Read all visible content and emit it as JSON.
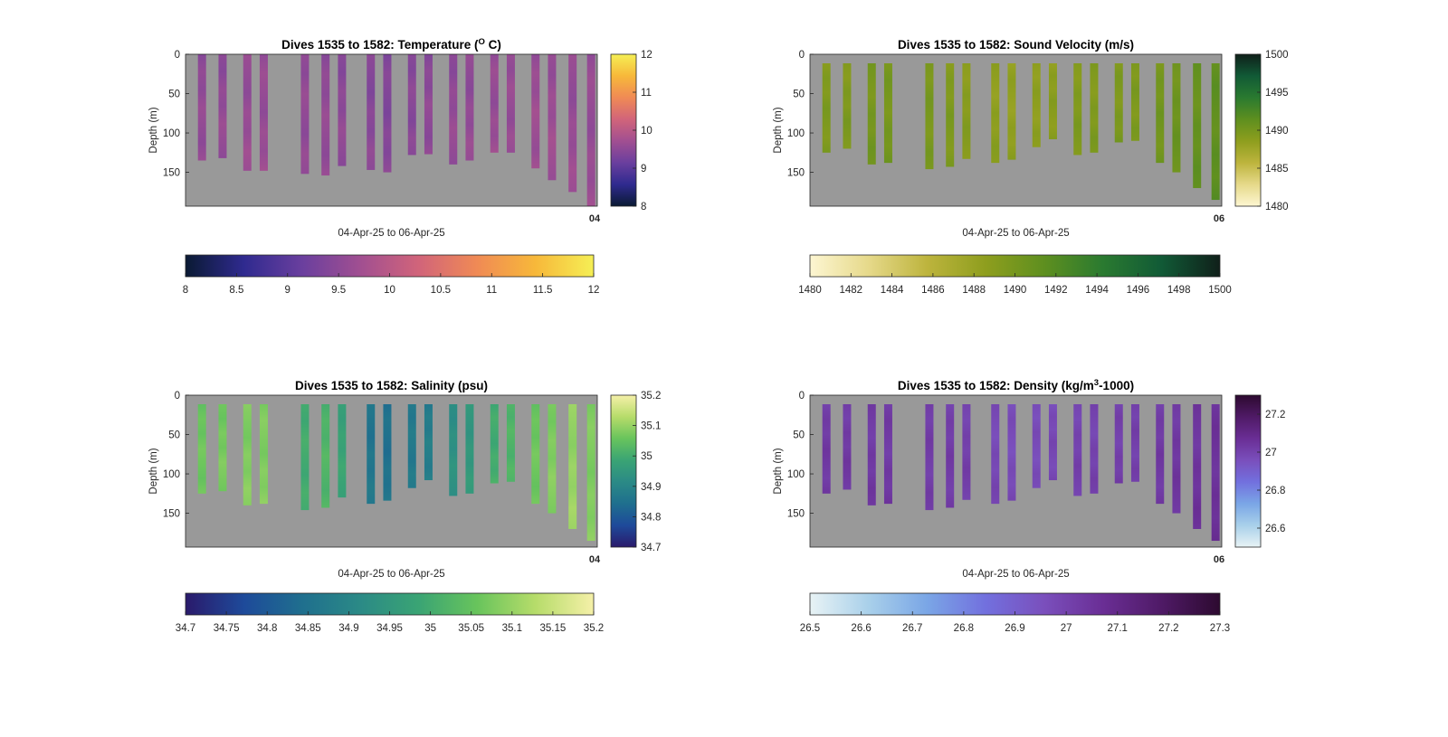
{
  "chart_data": [
    {
      "type": "heatmap",
      "title_prefix": "Dives 1535 to 1582: Temperature (",
      "title_sup": "O",
      "title_suffix": " C)",
      "xlabel": "04-Apr-25 to 06-Apr-25",
      "ylabel": "Depth (m)",
      "ylim": [
        0,
        193
      ],
      "yticks": [
        "0",
        "50",
        "100",
        "150"
      ],
      "xtick_label": "04",
      "colormap": [
        "#0a1a33",
        "#2f2a8f",
        "#6a3f9e",
        "#a14f91",
        "#d1647a",
        "#f08a55",
        "#f7b83a",
        "#f5ef55"
      ],
      "clim": [
        8,
        12
      ],
      "side_colorbar_ticks": [
        "8",
        "9",
        "10",
        "11",
        "12"
      ],
      "bottom_colorbar_ticks": [
        "8",
        "8.5",
        "9",
        "9.5",
        "10",
        "10.5",
        "11",
        "11.5",
        "12"
      ],
      "casts": [
        {
          "x": 0.04,
          "bottom": 135,
          "value": 9.55
        },
        {
          "x": 0.09,
          "bottom": 132,
          "value": 9.55
        },
        {
          "x": 0.15,
          "bottom": 148,
          "value": 9.6
        },
        {
          "x": 0.19,
          "bottom": 148,
          "value": 9.6
        },
        {
          "x": 0.29,
          "bottom": 152,
          "value": 9.55
        },
        {
          "x": 0.34,
          "bottom": 154,
          "value": 9.55
        },
        {
          "x": 0.38,
          "bottom": 142,
          "value": 9.5
        },
        {
          "x": 0.45,
          "bottom": 147,
          "value": 9.45
        },
        {
          "x": 0.49,
          "bottom": 150,
          "value": 9.4
        },
        {
          "x": 0.55,
          "bottom": 128,
          "value": 9.45
        },
        {
          "x": 0.59,
          "bottom": 127,
          "value": 9.5
        },
        {
          "x": 0.65,
          "bottom": 140,
          "value": 9.55
        },
        {
          "x": 0.69,
          "bottom": 135,
          "value": 9.55
        },
        {
          "x": 0.75,
          "bottom": 125,
          "value": 9.6
        },
        {
          "x": 0.79,
          "bottom": 125,
          "value": 9.6
        },
        {
          "x": 0.85,
          "bottom": 145,
          "value": 9.65
        },
        {
          "x": 0.89,
          "bottom": 160,
          "value": 9.65
        },
        {
          "x": 0.94,
          "bottom": 175,
          "value": 9.6
        },
        {
          "x": 0.985,
          "bottom": 193,
          "value": 9.6
        }
      ]
    },
    {
      "type": "heatmap",
      "title_prefix": "Dives 1535 to 1582: Sound Velocity (m/s)",
      "title_sup": "",
      "title_suffix": "",
      "xlabel": "04-Apr-25 to 06-Apr-25",
      "ylabel": "Depth (m)",
      "ylim": [
        0,
        193
      ],
      "yticks": [
        "0",
        "50",
        "100",
        "150"
      ],
      "xtick_label": "06",
      "colormap": [
        "#fdf6d2",
        "#e6d98a",
        "#bdb43d",
        "#8e9e1e",
        "#5e8f1f",
        "#2a7a30",
        "#115a36",
        "#10201a"
      ],
      "clim": [
        1480,
        1500
      ],
      "side_colorbar_ticks": [
        "1480",
        "1485",
        "1490",
        "1495",
        "1500"
      ],
      "bottom_colorbar_ticks": [
        "1480",
        "1482",
        "1484",
        "1486",
        "1488",
        "1490",
        "1492",
        "1494",
        "1496",
        "1498",
        "1500"
      ],
      "casts": [
        {
          "x": 0.04,
          "bottom": 125,
          "value": 1489.5
        },
        {
          "x": 0.09,
          "bottom": 120,
          "value": 1489.5
        },
        {
          "x": 0.15,
          "bottom": 140,
          "value": 1490.0
        },
        {
          "x": 0.19,
          "bottom": 138,
          "value": 1490.0
        },
        {
          "x": 0.29,
          "bottom": 146,
          "value": 1489.8
        },
        {
          "x": 0.34,
          "bottom": 143,
          "value": 1489.5
        },
        {
          "x": 0.38,
          "bottom": 133,
          "value": 1489.0
        },
        {
          "x": 0.45,
          "bottom": 138,
          "value": 1488.6
        },
        {
          "x": 0.49,
          "bottom": 134,
          "value": 1488.4
        },
        {
          "x": 0.55,
          "bottom": 118,
          "value": 1488.6
        },
        {
          "x": 0.59,
          "bottom": 108,
          "value": 1488.8
        },
        {
          "x": 0.65,
          "bottom": 128,
          "value": 1489.4
        },
        {
          "x": 0.69,
          "bottom": 125,
          "value": 1489.4
        },
        {
          "x": 0.75,
          "bottom": 112,
          "value": 1489.6
        },
        {
          "x": 0.79,
          "bottom": 110,
          "value": 1489.6
        },
        {
          "x": 0.85,
          "bottom": 138,
          "value": 1490.2
        },
        {
          "x": 0.89,
          "bottom": 150,
          "value": 1490.6
        },
        {
          "x": 0.94,
          "bottom": 170,
          "value": 1491.0
        },
        {
          "x": 0.985,
          "bottom": 185,
          "value": 1491.4
        }
      ]
    },
    {
      "type": "heatmap",
      "title_prefix": "Dives 1535 to 1582: Salinity (psu)",
      "title_sup": "",
      "title_suffix": "",
      "xlabel": "04-Apr-25 to 06-Apr-25",
      "ylabel": "Depth (m)",
      "ylim": [
        0,
        193
      ],
      "yticks": [
        "0",
        "50",
        "100",
        "150"
      ],
      "xtick_label": "04",
      "colormap": [
        "#2a1a6b",
        "#1e4a9a",
        "#1f6f8e",
        "#2b8a86",
        "#3aa474",
        "#68c45c",
        "#b6dc6a",
        "#f5f0a8"
      ],
      "clim": [
        34.7,
        35.2
      ],
      "side_colorbar_ticks": [
        "34.7",
        "34.8",
        "34.9",
        "35",
        "35.1",
        "35.2"
      ],
      "bottom_colorbar_ticks": [
        "34.7",
        "34.75",
        "34.8",
        "34.85",
        "34.9",
        "34.95",
        "35",
        "35.05",
        "35.1",
        "35.15",
        "35.2"
      ],
      "casts": [
        {
          "x": 0.04,
          "bottom": 125,
          "value": 35.06
        },
        {
          "x": 0.09,
          "bottom": 122,
          "value": 35.07
        },
        {
          "x": 0.15,
          "bottom": 140,
          "value": 35.08
        },
        {
          "x": 0.19,
          "bottom": 138,
          "value": 35.08
        },
        {
          "x": 0.29,
          "bottom": 146,
          "value": 35.0
        },
        {
          "x": 0.34,
          "bottom": 143,
          "value": 35.02
        },
        {
          "x": 0.38,
          "bottom": 130,
          "value": 34.98
        },
        {
          "x": 0.45,
          "bottom": 138,
          "value": 34.86
        },
        {
          "x": 0.49,
          "bottom": 134,
          "value": 34.85
        },
        {
          "x": 0.55,
          "bottom": 118,
          "value": 34.87
        },
        {
          "x": 0.59,
          "bottom": 108,
          "value": 34.88
        },
        {
          "x": 0.65,
          "bottom": 128,
          "value": 34.93
        },
        {
          "x": 0.69,
          "bottom": 125,
          "value": 34.95
        },
        {
          "x": 0.75,
          "bottom": 112,
          "value": 35.0
        },
        {
          "x": 0.79,
          "bottom": 110,
          "value": 35.02
        },
        {
          "x": 0.85,
          "bottom": 138,
          "value": 35.06
        },
        {
          "x": 0.89,
          "bottom": 150,
          "value": 35.08
        },
        {
          "x": 0.94,
          "bottom": 170,
          "value": 35.1
        },
        {
          "x": 0.985,
          "bottom": 185,
          "value": 35.08
        }
      ]
    },
    {
      "type": "heatmap",
      "title_prefix": "Dives 1535 to 1582: Density (kg/m",
      "title_sup": "3",
      "title_suffix": "-1000)",
      "xlabel": "04-Apr-25 to 06-Apr-25",
      "ylabel": "Depth (m)",
      "ylim": [
        0,
        193
      ],
      "yticks": [
        "0",
        "50",
        "100",
        "150"
      ],
      "xtick_label": "06",
      "colormap": [
        "#e8f3f5",
        "#a9d0ea",
        "#7aa6e6",
        "#7270de",
        "#7a4fbc",
        "#6a2e95",
        "#4f1a66",
        "#2d0a30"
      ],
      "clim": [
        26.5,
        27.3
      ],
      "side_colorbar_ticks": [
        "26.6",
        "26.8",
        "27",
        "27.2"
      ],
      "bottom_colorbar_ticks": [
        "26.5",
        "26.6",
        "26.7",
        "26.8",
        "26.9",
        "27",
        "27.1",
        "27.2",
        "27.3"
      ],
      "casts": [
        {
          "x": 0.04,
          "bottom": 125,
          "value": 27.03
        },
        {
          "x": 0.09,
          "bottom": 120,
          "value": 27.03
        },
        {
          "x": 0.15,
          "bottom": 140,
          "value": 27.03
        },
        {
          "x": 0.19,
          "bottom": 138,
          "value": 27.03
        },
        {
          "x": 0.29,
          "bottom": 146,
          "value": 27.02
        },
        {
          "x": 0.34,
          "bottom": 143,
          "value": 27.02
        },
        {
          "x": 0.38,
          "bottom": 133,
          "value": 27.01
        },
        {
          "x": 0.45,
          "bottom": 138,
          "value": 26.98
        },
        {
          "x": 0.49,
          "bottom": 134,
          "value": 26.97
        },
        {
          "x": 0.55,
          "bottom": 118,
          "value": 26.97
        },
        {
          "x": 0.59,
          "bottom": 108,
          "value": 26.98
        },
        {
          "x": 0.65,
          "bottom": 128,
          "value": 27.0
        },
        {
          "x": 0.69,
          "bottom": 125,
          "value": 27.0
        },
        {
          "x": 0.75,
          "bottom": 112,
          "value": 27.01
        },
        {
          "x": 0.79,
          "bottom": 110,
          "value": 27.01
        },
        {
          "x": 0.85,
          "bottom": 138,
          "value": 27.03
        },
        {
          "x": 0.89,
          "bottom": 150,
          "value": 27.04
        },
        {
          "x": 0.94,
          "bottom": 170,
          "value": 27.05
        },
        {
          "x": 0.985,
          "bottom": 185,
          "value": 27.06
        }
      ]
    }
  ]
}
